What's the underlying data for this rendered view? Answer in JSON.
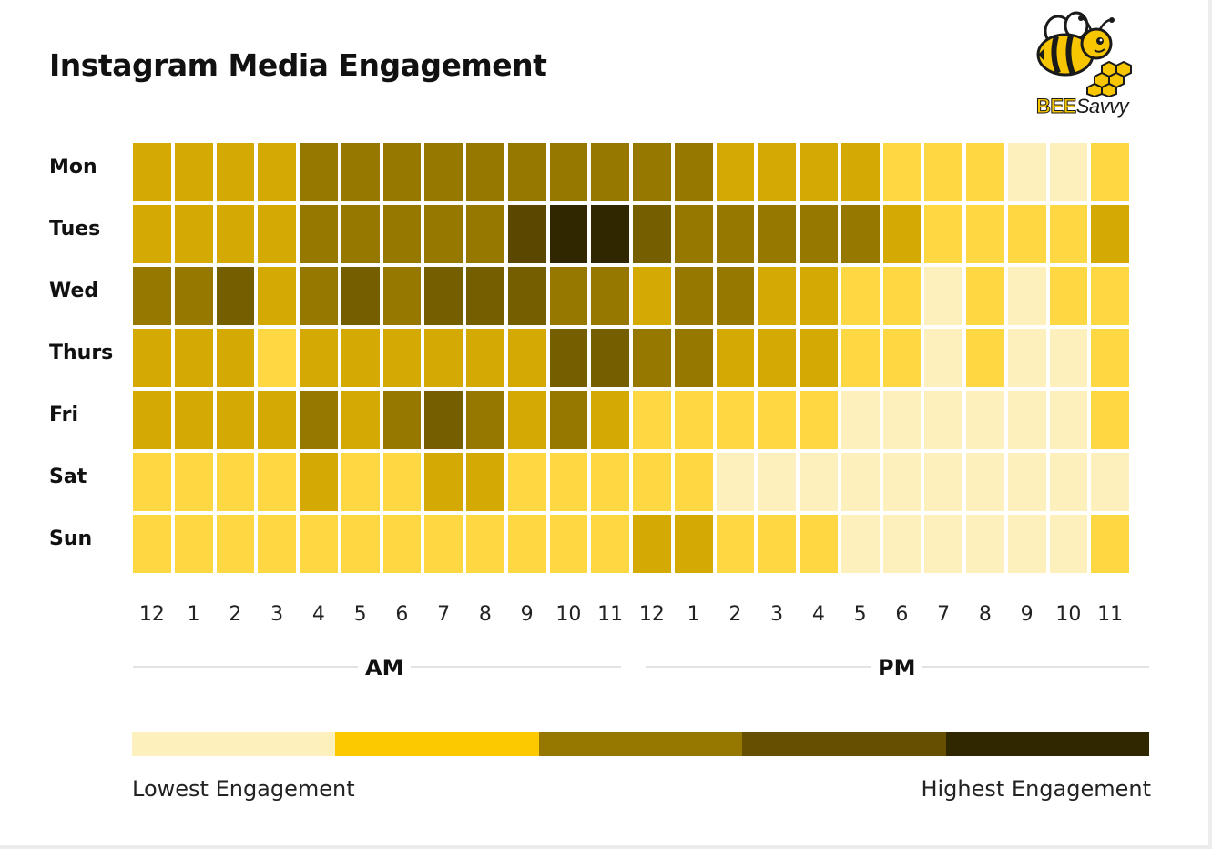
{
  "title": "Instagram Media Engagement",
  "logo": {
    "bee": "BEE",
    "savvy": "Savvy"
  },
  "palette": {
    "0": "#fdf0bc",
    "1": "#fdd843",
    "2": "#d4a904",
    "3": "#967800",
    "4": "#755e00",
    "5": "#5b4700",
    "6": "#302600"
  },
  "chart_data": {
    "type": "heatmap",
    "title": "Instagram Media Engagement",
    "rows": [
      "Mon",
      "Tues",
      "Wed",
      "Thurs",
      "Fri",
      "Sat",
      "Sun"
    ],
    "columns": [
      "12",
      "1",
      "2",
      "3",
      "4",
      "5",
      "6",
      "7",
      "8",
      "9",
      "10",
      "11",
      "12",
      "1",
      "2",
      "3",
      "4",
      "5",
      "6",
      "7",
      "8",
      "9",
      "10",
      "11"
    ],
    "column_groups": [
      {
        "label": "AM",
        "start": 0,
        "end": 11
      },
      {
        "label": "PM",
        "start": 12,
        "end": 23
      }
    ],
    "scale": "0 = lowest engagement, 6 = highest engagement",
    "values": [
      [
        2,
        2,
        2,
        2,
        3,
        3,
        3,
        3,
        3,
        3,
        3,
        3,
        3,
        3,
        2,
        2,
        2,
        2,
        1,
        1,
        1,
        0,
        0,
        1
      ],
      [
        2,
        2,
        2,
        2,
        3,
        3,
        3,
        3,
        3,
        5,
        6,
        6,
        4,
        3,
        3,
        3,
        3,
        3,
        2,
        1,
        1,
        1,
        1,
        2
      ],
      [
        3,
        3,
        4,
        2,
        3,
        4,
        3,
        4,
        4,
        4,
        3,
        3,
        2,
        3,
        3,
        2,
        2,
        1,
        1,
        0,
        1,
        0,
        1,
        1
      ],
      [
        2,
        2,
        2,
        1,
        2,
        2,
        2,
        2,
        2,
        2,
        4,
        4,
        3,
        3,
        2,
        2,
        2,
        1,
        1,
        0,
        1,
        0,
        0,
        1
      ],
      [
        2,
        2,
        2,
        2,
        3,
        2,
        3,
        4,
        3,
        2,
        3,
        2,
        1,
        1,
        1,
        1,
        1,
        0,
        0,
        0,
        0,
        0,
        0,
        1
      ],
      [
        1,
        1,
        1,
        1,
        2,
        1,
        1,
        2,
        2,
        1,
        1,
        1,
        1,
        1,
        0,
        0,
        0,
        0,
        0,
        0,
        0,
        0,
        0,
        0
      ],
      [
        1,
        1,
        1,
        1,
        1,
        1,
        1,
        1,
        1,
        1,
        1,
        1,
        2,
        2,
        1,
        1,
        1,
        0,
        0,
        0,
        0,
        0,
        0,
        1
      ]
    ]
  },
  "legend": {
    "colors": [
      "#fdf0bc",
      "#fcc800",
      "#967800",
      "#664f00",
      "#302600"
    ],
    "low_label": "Lowest Engagement",
    "high_label": "Highest Engagement"
  }
}
